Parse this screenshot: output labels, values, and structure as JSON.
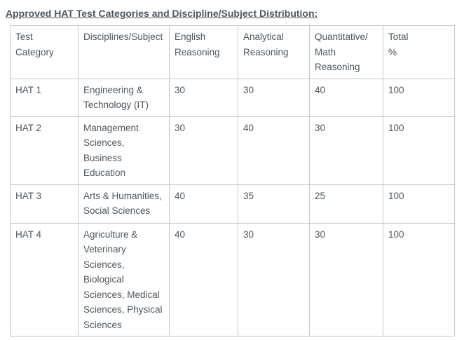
{
  "page": {
    "title": "Approved HAT Test Categories and Discipline/Subject Distribution:"
  },
  "table": {
    "columns": [
      {
        "label": "Test Category"
      },
      {
        "label": "Disciplines/Subject"
      },
      {
        "label": "English\nReasoning"
      },
      {
        "label": "Analytical\nReasoning"
      },
      {
        "label": "Quantitative/\nMath\nReasoning"
      },
      {
        "label": "Total\n%"
      }
    ],
    "rows": [
      {
        "cells": [
          "HAT 1",
          "Engineering & Technology (IT)",
          "30",
          "30",
          "40",
          "100"
        ]
      },
      {
        "cells": [
          "HAT 2",
          "Management Sciences, Business Education",
          "30",
          "40",
          "30",
          "100"
        ]
      },
      {
        "cells": [
          "HAT 3",
          "Arts & Humanities, Social Sciences",
          "40",
          "35",
          "25",
          "100"
        ]
      },
      {
        "cells": [
          "HAT 4",
          "Agriculture & Veterinary Sciences, Biological Sciences, Medical Sciences, Physical Sciences",
          "40",
          "30",
          "30",
          "100"
        ]
      }
    ]
  },
  "colors": {
    "text": "#4e575e",
    "border": "#c7c7c7",
    "background": "#ffffff"
  }
}
